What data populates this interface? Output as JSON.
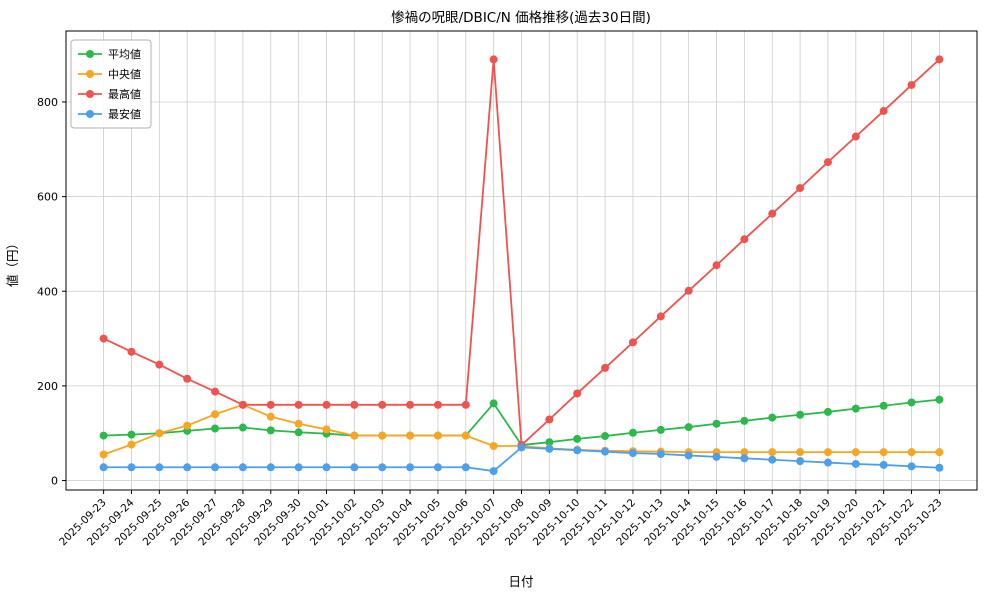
{
  "chart_data": {
    "type": "line",
    "title": "惨禍の呪眼/DBIC/N 価格推移(過去30日間)",
    "xlabel": "日付",
    "ylabel": "値（円）",
    "ylim": [
      -20,
      950
    ],
    "yticks": [
      0,
      200,
      400,
      600,
      800
    ],
    "grid": true,
    "legend_position": "upper left",
    "categories": [
      "2025-09-23",
      "2025-09-24",
      "2025-09-25",
      "2025-09-26",
      "2025-09-27",
      "2025-09-28",
      "2025-09-29",
      "2025-09-30",
      "2025-10-01",
      "2025-10-02",
      "2025-10-03",
      "2025-10-04",
      "2025-10-05",
      "2025-10-06",
      "2025-10-07",
      "2025-10-08",
      "2025-10-09",
      "2025-10-10",
      "2025-10-11",
      "2025-10-12",
      "2025-10-13",
      "2025-10-14",
      "2025-10-15",
      "2025-10-16",
      "2025-10-17",
      "2025-10-18",
      "2025-10-19",
      "2025-10-20",
      "2025-10-21",
      "2025-10-22",
      "2025-10-23"
    ],
    "series": [
      {
        "name": "平均値",
        "color": "#2db84c",
        "values": [
          95,
          97,
          100,
          105,
          110,
          112,
          106,
          102,
          99,
          95,
          95,
          95,
          95,
          95,
          163,
          75,
          81,
          88,
          94,
          101,
          107,
          113,
          120,
          126,
          133,
          139,
          145,
          152,
          158,
          165,
          171
        ]
      },
      {
        "name": "中央値",
        "color": "#f5a623",
        "values": [
          55,
          76,
          100,
          116,
          140,
          160,
          135,
          120,
          108,
          95,
          95,
          95,
          95,
          95,
          73,
          73,
          68,
          65,
          63,
          62,
          61,
          60,
          60,
          60,
          60,
          60,
          60,
          60,
          60,
          60,
          60
        ]
      },
      {
        "name": "最高値",
        "color": "#ef5350",
        "values": [
          300,
          272,
          245,
          215,
          188,
          160,
          160,
          160,
          160,
          160,
          160,
          160,
          160,
          160,
          890,
          75,
          129,
          184,
          238,
          292,
          347,
          401,
          455,
          510,
          564,
          618,
          673,
          727,
          781,
          836,
          890
        ]
      },
      {
        "name": "最安値",
        "color": "#4d9fec",
        "values": [
          28,
          28,
          28,
          28,
          28,
          28,
          28,
          28,
          28,
          28,
          28,
          28,
          28,
          28,
          20,
          70,
          67,
          64,
          61,
          58,
          56,
          53,
          50,
          47,
          44,
          41,
          38,
          35,
          33,
          30,
          27
        ]
      }
    ]
  },
  "colors": {
    "grid": "#cccccc",
    "spine": "#000000",
    "background": "#ffffff",
    "legend_border": "#b0b0b0"
  }
}
